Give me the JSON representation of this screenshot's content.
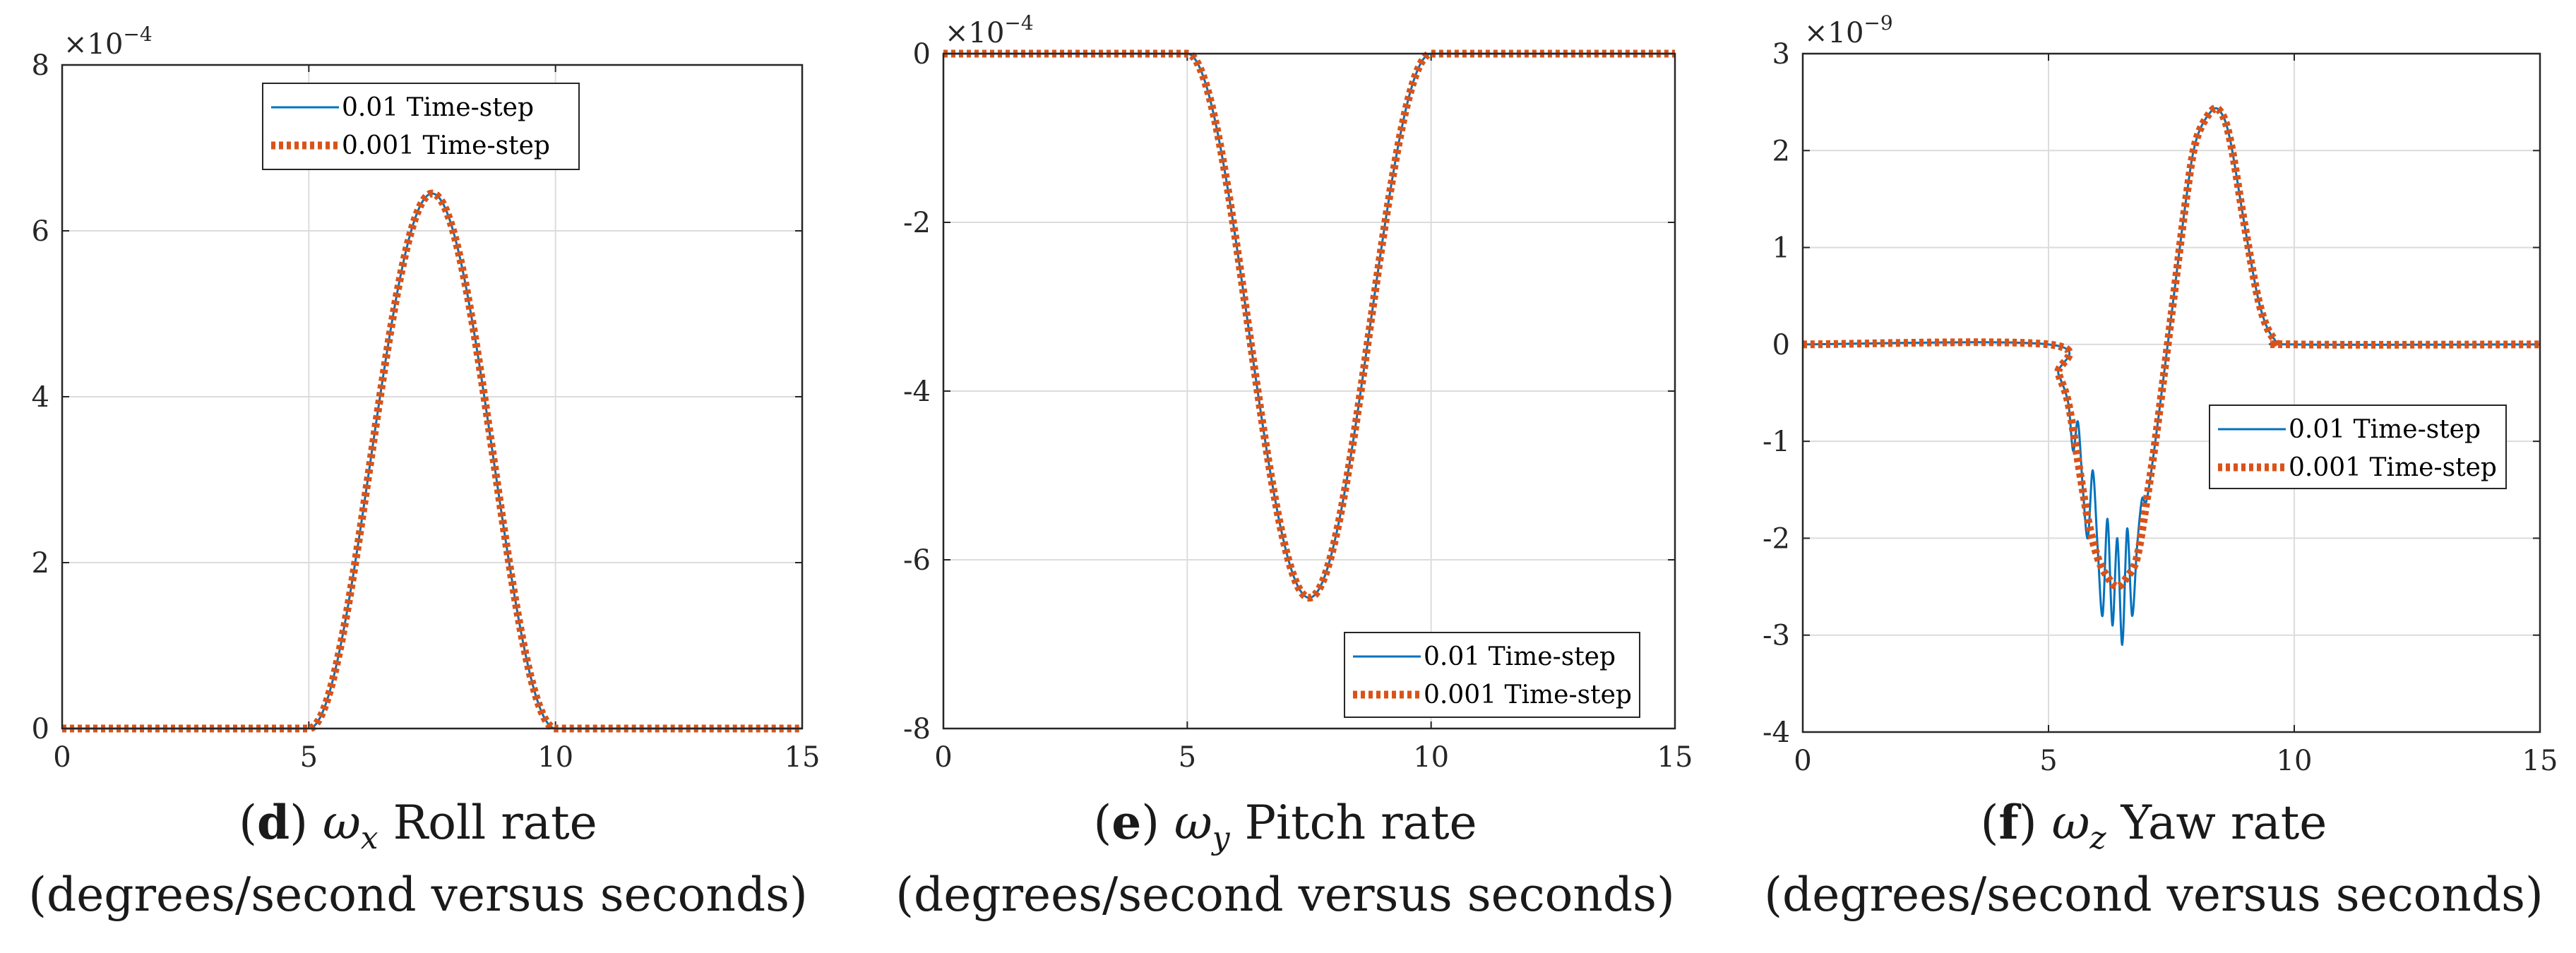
{
  "chart_data": [
    {
      "type": "line",
      "panel": "d",
      "title": "ω_x Roll rate",
      "caption": {
        "label": "d",
        "symbol": "ω",
        "subscript": "x",
        "text": "Roll rate",
        "subtitle": "(degrees/second versus seconds)"
      },
      "xlabel": "seconds",
      "ylabel": "degrees/second",
      "xlim": [
        0,
        15
      ],
      "ylim": [
        0,
        8
      ],
      "y_exponent_label": "×10",
      "y_exponent_power": "−4",
      "x_ticks": [
        0,
        5,
        10,
        15
      ],
      "y_ticks": [
        0,
        2,
        4,
        6,
        8
      ],
      "grid": true,
      "legend_position": "top-center",
      "series": [
        {
          "name": "0.01 Time-step",
          "color": "#0072BD",
          "style": "solid",
          "shape": "raised-cosine",
          "x": [
            0,
            5,
            7.5,
            10,
            15
          ],
          "y": [
            0,
            0,
            6.45,
            0,
            0
          ]
        },
        {
          "name": "0.001 Time-step",
          "color": "#D95319",
          "style": "dotted",
          "shape": "raised-cosine",
          "x": [
            0,
            5,
            7.5,
            10,
            15
          ],
          "y": [
            0,
            0,
            6.45,
            0,
            0
          ]
        }
      ]
    },
    {
      "type": "line",
      "panel": "e",
      "title": "ω_y Pitch rate",
      "caption": {
        "label": "e",
        "symbol": "ω",
        "subscript": "y",
        "text": "Pitch rate",
        "subtitle": "(degrees/second versus seconds)"
      },
      "xlabel": "seconds",
      "ylabel": "degrees/second",
      "xlim": [
        0,
        15
      ],
      "ylim": [
        -8,
        0
      ],
      "y_exponent_label": "×10",
      "y_exponent_power": "−4",
      "x_ticks": [
        0,
        5,
        10,
        15
      ],
      "y_ticks": [
        -8,
        -6,
        -4,
        -2,
        0
      ],
      "grid": true,
      "legend_position": "bottom-right",
      "series": [
        {
          "name": "0.01 Time-step",
          "color": "#0072BD",
          "style": "solid",
          "shape": "raised-cosine",
          "x": [
            0,
            5,
            7.5,
            10,
            15
          ],
          "y": [
            0,
            0,
            -6.45,
            0,
            0
          ]
        },
        {
          "name": "0.001 Time-step",
          "color": "#D95319",
          "style": "dotted",
          "shape": "raised-cosine",
          "x": [
            0,
            5,
            7.5,
            10,
            15
          ],
          "y": [
            0,
            0,
            -6.45,
            0,
            0
          ]
        }
      ]
    },
    {
      "type": "line",
      "panel": "f",
      "title": "ω_z Yaw rate",
      "caption": {
        "label": "f",
        "symbol": "ω",
        "subscript": "z",
        "text": "Yaw rate",
        "subtitle": "(degrees/second versus seconds)"
      },
      "xlabel": "seconds",
      "ylabel": "degrees/second",
      "xlim": [
        0,
        15
      ],
      "ylim": [
        -4,
        3
      ],
      "y_exponent_label": "×10",
      "y_exponent_power": "−9",
      "x_ticks": [
        0,
        5,
        10,
        15
      ],
      "y_ticks": [
        -4,
        -3,
        -2,
        -1,
        0,
        1,
        2,
        3
      ],
      "grid": true,
      "legend_position": "center-right",
      "series": [
        {
          "name": "0.01 Time-step",
          "color": "#0072BD",
          "style": "solid",
          "x": [
            0,
            5.0,
            5.2,
            5.4,
            5.5,
            5.6,
            5.7,
            5.8,
            5.9,
            6.0,
            6.1,
            6.2,
            6.3,
            6.4,
            6.5,
            6.6,
            6.7,
            6.8,
            6.9,
            7.0,
            7.2,
            7.5,
            7.8,
            8.0,
            8.3,
            8.5,
            8.7,
            9.0,
            9.3,
            9.6,
            10.0,
            15
          ],
          "y": [
            0,
            0,
            -0.3,
            -0.6,
            -1.1,
            -0.8,
            -1.5,
            -2.0,
            -1.3,
            -2.1,
            -2.8,
            -1.8,
            -2.9,
            -2.0,
            -3.1,
            -1.9,
            -2.8,
            -2.1,
            -1.6,
            -1.6,
            -0.9,
            0.3,
            1.5,
            2.1,
            2.4,
            2.4,
            2.1,
            1.2,
            0.4,
            0.05,
            0,
            0
          ]
        },
        {
          "name": "0.001 Time-step",
          "color": "#D95319",
          "style": "dotted",
          "x": [
            0,
            5.0,
            5.2,
            5.4,
            5.6,
            5.8,
            6.0,
            6.2,
            6.4,
            6.6,
            6.8,
            7.0,
            7.2,
            7.5,
            7.8,
            8.0,
            8.3,
            8.5,
            8.7,
            9.0,
            9.3,
            9.6,
            10.0,
            15
          ],
          "y": [
            0,
            0,
            -0.3,
            -0.6,
            -1.2,
            -1.8,
            -2.2,
            -2.4,
            -2.5,
            -2.4,
            -2.2,
            -1.6,
            -0.9,
            0.3,
            1.5,
            2.1,
            2.4,
            2.4,
            2.1,
            1.2,
            0.4,
            0.05,
            0,
            0
          ]
        }
      ]
    }
  ]
}
